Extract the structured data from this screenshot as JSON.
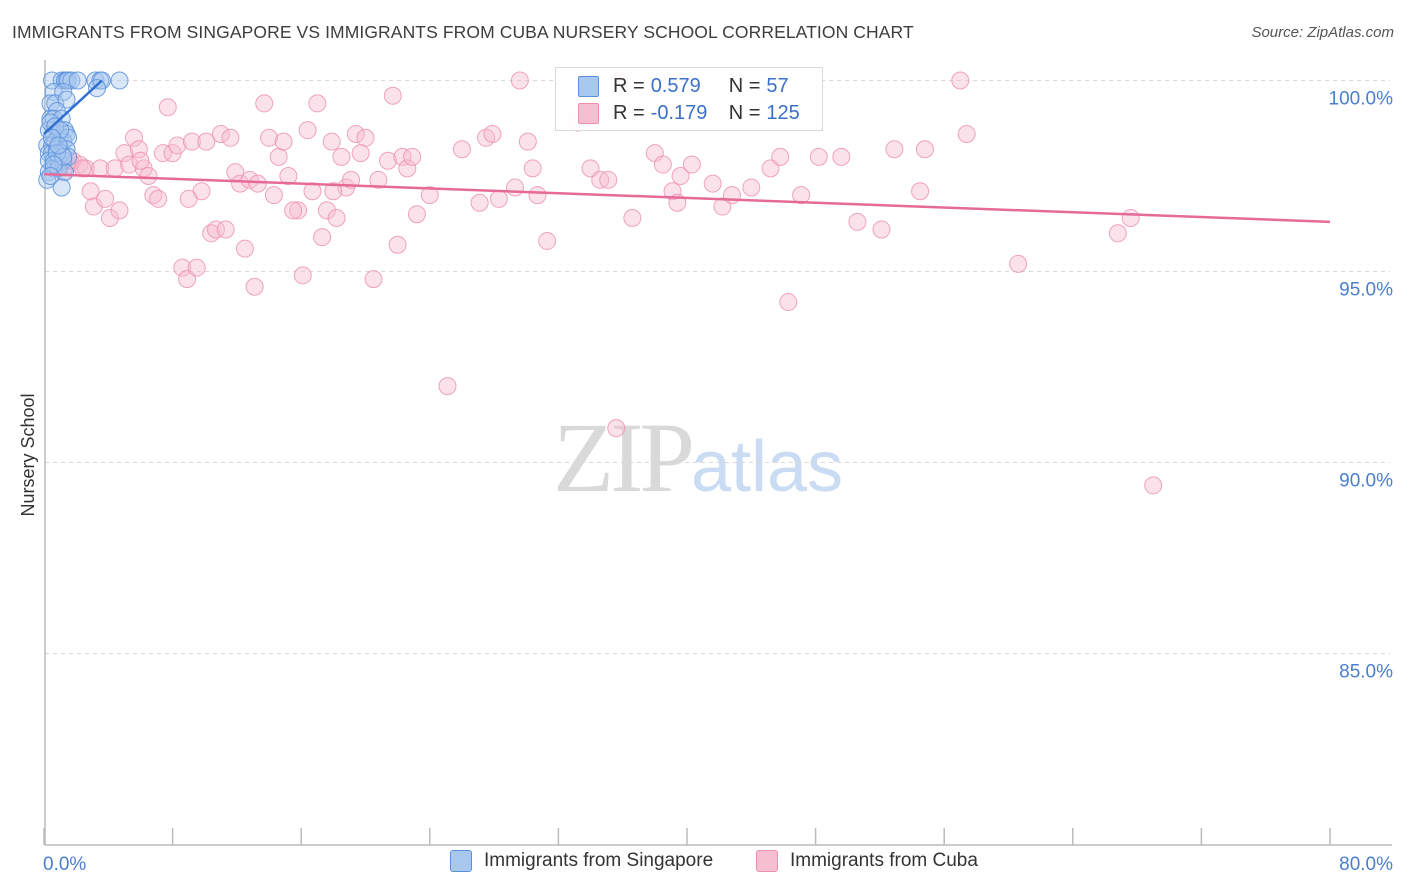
{
  "header": {
    "title": "IMMIGRANTS FROM SINGAPORE VS IMMIGRANTS FROM CUBA NURSERY SCHOOL CORRELATION CHART",
    "source": "Source: ZipAtlas.com"
  },
  "watermark": {
    "zip": "ZIP",
    "atlas": "atlas"
  },
  "legend": {
    "rows": [
      {
        "r_label": "R = ",
        "r_value": "0.579",
        "n_label": "N = ",
        "n_value": "57"
      },
      {
        "r_label": "R = ",
        "r_value": "-0.179",
        "n_label": "N = ",
        "n_value": "125"
      }
    ]
  },
  "bottom_legend": {
    "singapore": "Immigrants from Singapore",
    "cuba": "Immigrants from Cuba"
  },
  "colors": {
    "singapore_fill": "#a9c8f0",
    "singapore_stroke": "#5b90db",
    "singapore_line": "#2f6fcf",
    "cuba_fill": "#f7bdd0",
    "cuba_stroke": "#ec8fb0",
    "cuba_line": "#e66a98",
    "grid": "#d8d8d8",
    "tick_text": "#4a7fcf"
  },
  "chart_data": {
    "type": "scatter",
    "title": "IMMIGRANTS FROM SINGAPORE VS IMMIGRANTS FROM CUBA NURSERY SCHOOL CORRELATION CHART",
    "xlabel": "",
    "ylabel": "Nursery School",
    "xlim": [
      0,
      80
    ],
    "ylim": [
      80.5,
      100.9
    ],
    "x_tick_labels": [
      "0.0%",
      "80.0%"
    ],
    "y_ticks": [
      100,
      95,
      90,
      85
    ],
    "y_tick_labels": [
      "100.0%",
      "95.0%",
      "90.0%",
      "85.0%"
    ],
    "grid": "horizontal dashed",
    "legend_placement": "top-center and bottom",
    "series": [
      {
        "name": "Immigrants from Singapore",
        "r": 0.579,
        "n": 57,
        "trend": {
          "x": [
            0.0,
            3.6
          ],
          "y": [
            98.6,
            100.0
          ]
        },
        "points": [
          [
            0.5,
            100
          ],
          [
            1.1,
            100
          ],
          [
            1.3,
            100
          ],
          [
            1.4,
            100
          ],
          [
            1.5,
            100
          ],
          [
            1.7,
            100
          ],
          [
            2.1,
            100
          ],
          [
            3.2,
            100
          ],
          [
            3.5,
            100
          ],
          [
            3.6,
            100
          ],
          [
            4.7,
            100
          ],
          [
            0.6,
            99.7
          ],
          [
            1.2,
            99.7
          ],
          [
            0.4,
            99.4
          ],
          [
            0.7,
            99.4
          ],
          [
            1.4,
            99.5
          ],
          [
            0.8,
            99.2
          ],
          [
            3.3,
            99.8
          ],
          [
            0.4,
            99.0
          ],
          [
            0.6,
            99.0
          ],
          [
            1.1,
            99.0
          ],
          [
            0.3,
            98.7
          ],
          [
            0.6,
            98.6
          ],
          [
            0.9,
            98.6
          ],
          [
            1.3,
            98.7
          ],
          [
            1.4,
            98.6
          ],
          [
            0.2,
            98.3
          ],
          [
            0.5,
            98.3
          ],
          [
            0.7,
            98.4
          ],
          [
            1.0,
            98.4
          ],
          [
            1.2,
            98.4
          ],
          [
            1.5,
            98.5
          ],
          [
            0.3,
            98.1
          ],
          [
            0.5,
            98.1
          ],
          [
            0.8,
            98.2
          ],
          [
            1.1,
            98.1
          ],
          [
            1.4,
            98.2
          ],
          [
            0.3,
            97.9
          ],
          [
            0.6,
            97.9
          ],
          [
            0.9,
            97.9
          ],
          [
            1.2,
            97.9
          ],
          [
            1.5,
            98.0
          ],
          [
            0.3,
            97.6
          ],
          [
            0.6,
            97.7
          ],
          [
            0.9,
            97.7
          ],
          [
            1.3,
            97.6
          ],
          [
            0.2,
            97.4
          ],
          [
            1.1,
            97.2
          ],
          [
            0.4,
            98.9
          ],
          [
            0.7,
            98.8
          ],
          [
            1.0,
            98.7
          ],
          [
            0.5,
            98.5
          ],
          [
            0.8,
            98.1
          ],
          [
            1.2,
            98.0
          ],
          [
            0.6,
            97.8
          ],
          [
            0.9,
            98.3
          ],
          [
            0.4,
            97.5
          ]
        ]
      },
      {
        "name": "Immigrants from Cuba",
        "r": -0.179,
        "n": 125,
        "trend": {
          "x": [
            0.0,
            80.0
          ],
          "y": [
            97.55,
            96.3
          ]
        },
        "points": [
          [
            0.8,
            97.7
          ],
          [
            1.2,
            97.6
          ],
          [
            1.5,
            97.8
          ],
          [
            1.8,
            97.9
          ],
          [
            2.2,
            97.8
          ],
          [
            2.6,
            97.7
          ],
          [
            2.9,
            97.1
          ],
          [
            3.1,
            96.7
          ],
          [
            3.5,
            97.7
          ],
          [
            3.8,
            96.9
          ],
          [
            4.1,
            96.4
          ],
          [
            4.4,
            97.7
          ],
          [
            4.7,
            96.6
          ],
          [
            5.0,
            98.1
          ],
          [
            5.3,
            97.8
          ],
          [
            5.6,
            98.5
          ],
          [
            5.9,
            98.2
          ],
          [
            6.2,
            97.7
          ],
          [
            6.5,
            97.5
          ],
          [
            6.8,
            97.0
          ],
          [
            7.1,
            96.9
          ],
          [
            7.4,
            98.1
          ],
          [
            7.7,
            99.3
          ],
          [
            8.0,
            98.1
          ],
          [
            8.3,
            98.3
          ],
          [
            8.6,
            95.1
          ],
          [
            8.9,
            94.8
          ],
          [
            9.2,
            98.4
          ],
          [
            9.5,
            95.1
          ],
          [
            9.8,
            97.1
          ],
          [
            10.1,
            98.4
          ],
          [
            10.4,
            96.0
          ],
          [
            10.7,
            96.1
          ],
          [
            11.0,
            98.6
          ],
          [
            11.3,
            96.1
          ],
          [
            11.6,
            98.5
          ],
          [
            11.9,
            97.6
          ],
          [
            12.2,
            97.3
          ],
          [
            12.5,
            95.6
          ],
          [
            12.8,
            97.4
          ],
          [
            13.1,
            94.6
          ],
          [
            13.7,
            99.4
          ],
          [
            14.0,
            98.5
          ],
          [
            14.3,
            97.0
          ],
          [
            14.6,
            98.0
          ],
          [
            14.9,
            98.4
          ],
          [
            15.2,
            97.5
          ],
          [
            15.8,
            96.6
          ],
          [
            16.1,
            94.9
          ],
          [
            16.4,
            98.7
          ],
          [
            16.7,
            97.1
          ],
          [
            17.0,
            99.4
          ],
          [
            17.3,
            95.9
          ],
          [
            17.6,
            96.6
          ],
          [
            17.9,
            98.4
          ],
          [
            18.2,
            96.4
          ],
          [
            18.5,
            98.0
          ],
          [
            18.8,
            97.2
          ],
          [
            19.1,
            97.4
          ],
          [
            19.4,
            98.6
          ],
          [
            19.7,
            98.1
          ],
          [
            20.0,
            98.5
          ],
          [
            20.5,
            94.8
          ],
          [
            20.8,
            97.4
          ],
          [
            21.4,
            97.9
          ],
          [
            21.7,
            99.6
          ],
          [
            22.0,
            95.7
          ],
          [
            22.3,
            98.0
          ],
          [
            22.6,
            97.7
          ],
          [
            22.9,
            98.0
          ],
          [
            23.2,
            96.5
          ],
          [
            24.0,
            97.0
          ],
          [
            25.1,
            92.0
          ],
          [
            26.0,
            98.2
          ],
          [
            27.1,
            96.8
          ],
          [
            27.5,
            98.5
          ],
          [
            27.9,
            98.6
          ],
          [
            28.3,
            96.9
          ],
          [
            29.3,
            97.2
          ],
          [
            29.6,
            100.0
          ],
          [
            30.1,
            98.4
          ],
          [
            30.4,
            97.7
          ],
          [
            30.7,
            97.0
          ],
          [
            31.3,
            95.8
          ],
          [
            33.2,
            98.9
          ],
          [
            34.0,
            97.7
          ],
          [
            34.6,
            97.4
          ],
          [
            35.1,
            97.4
          ],
          [
            35.6,
            90.9
          ],
          [
            35.8,
            100.0
          ],
          [
            36.6,
            96.4
          ],
          [
            38.0,
            98.1
          ],
          [
            38.5,
            97.8
          ],
          [
            39.1,
            97.1
          ],
          [
            39.4,
            96.8
          ],
          [
            39.6,
            97.5
          ],
          [
            40.3,
            97.8
          ],
          [
            41.6,
            97.3
          ],
          [
            42.2,
            96.7
          ],
          [
            42.8,
            97.0
          ],
          [
            44.0,
            97.2
          ],
          [
            45.2,
            97.7
          ],
          [
            45.8,
            98.0
          ],
          [
            46.3,
            94.2
          ],
          [
            47.1,
            97.0
          ],
          [
            48.2,
            98.0
          ],
          [
            49.6,
            98.0
          ],
          [
            50.6,
            96.3
          ],
          [
            52.1,
            96.1
          ],
          [
            52.9,
            98.2
          ],
          [
            54.5,
            97.1
          ],
          [
            54.8,
            98.2
          ],
          [
            57.0,
            100.0
          ],
          [
            57.4,
            98.6
          ],
          [
            60.6,
            95.2
          ],
          [
            66.8,
            96.0
          ],
          [
            67.6,
            96.4
          ],
          [
            69.0,
            89.4
          ],
          [
            1.6,
            97.9
          ],
          [
            2.4,
            97.7
          ],
          [
            6.0,
            97.9
          ],
          [
            9.0,
            96.9
          ],
          [
            13.3,
            97.3
          ],
          [
            15.5,
            96.6
          ],
          [
            18.0,
            97.1
          ]
        ]
      }
    ]
  }
}
